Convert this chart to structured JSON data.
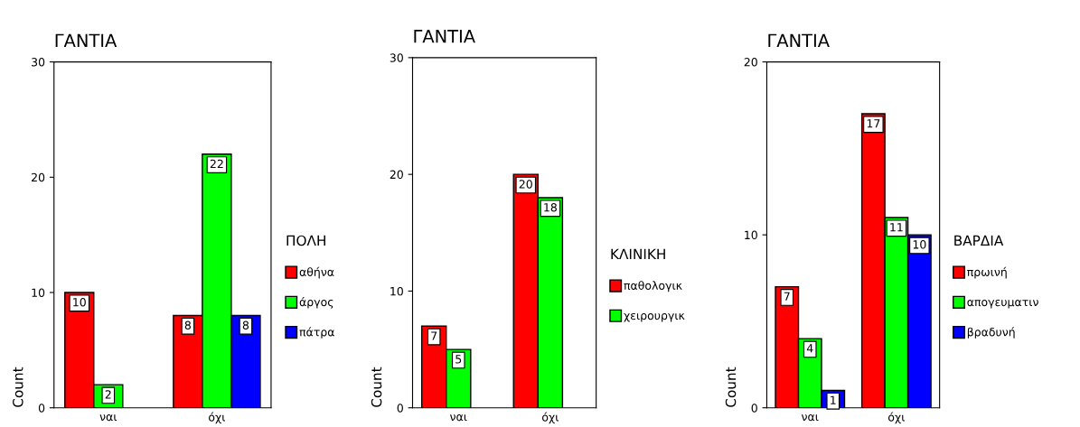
{
  "chart_data": [
    {
      "type": "bar",
      "title": "ΓΑΝΤΙΑ",
      "ylabel": "Count",
      "legend_title": "ΠΟΛΗ",
      "categories": [
        "ναι",
        "όχι"
      ],
      "ylim": [
        0,
        30
      ],
      "yticks": [
        0,
        10,
        20,
        30
      ],
      "data_labels": true,
      "legend": "right",
      "grid": false,
      "series": [
        {
          "name": "αθήνα",
          "color": "#ff0000",
          "values": [
            10,
            8
          ]
        },
        {
          "name": "άργος",
          "color": "#00ff00",
          "values": [
            2,
            22
          ]
        },
        {
          "name": "πάτρα",
          "color": "#0000ff",
          "values": [
            null,
            8
          ]
        }
      ]
    },
    {
      "type": "bar",
      "title": "ΓΑΝΤΙΑ",
      "ylabel": "Count",
      "legend_title": "ΚΛΙΝΙΚΗ",
      "categories": [
        "ναι",
        "όχι"
      ],
      "ylim": [
        0,
        30
      ],
      "yticks": [
        0,
        10,
        20,
        30
      ],
      "data_labels": true,
      "legend": "right",
      "grid": false,
      "series": [
        {
          "name": "παθολογικ",
          "color": "#ff0000",
          "values": [
            7,
            20
          ]
        },
        {
          "name": "χειρουργικ",
          "color": "#00ff00",
          "values": [
            5,
            18
          ]
        }
      ]
    },
    {
      "type": "bar",
      "title": "ΓΑΝΤΙΑ",
      "ylabel": "Count",
      "legend_title": "ΒΑΡΔΙΑ",
      "categories": [
        "ναι",
        "όχι"
      ],
      "ylim": [
        0,
        20
      ],
      "yticks": [
        0,
        10,
        20
      ],
      "data_labels": true,
      "legend": "right",
      "grid": false,
      "series": [
        {
          "name": "πρωινή",
          "color": "#ff0000",
          "values": [
            7,
            17
          ]
        },
        {
          "name": "απογευματιν",
          "color": "#00ff00",
          "values": [
            4,
            11
          ]
        },
        {
          "name": "βραδυνή",
          "color": "#0000ff",
          "values": [
            1,
            10
          ]
        }
      ]
    }
  ]
}
